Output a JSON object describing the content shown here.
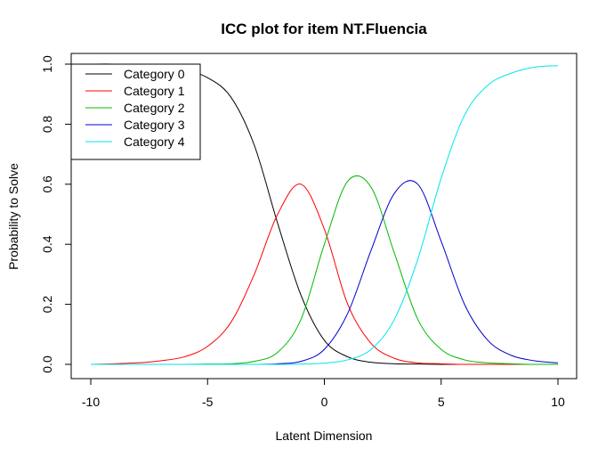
{
  "chart_data": {
    "type": "line",
    "title": "ICC plot for item NT.Fluencia",
    "xlabel": "Latent Dimension",
    "ylabel": "Probability to Solve",
    "xlim": [
      -10,
      10
    ],
    "ylim": [
      0,
      1
    ],
    "x_ticks": [
      "-10",
      "-5",
      "0",
      "5",
      "10"
    ],
    "y_ticks": [
      "0.0",
      "0.2",
      "0.4",
      "0.6",
      "0.8",
      "1.0"
    ],
    "grid": false,
    "legend_position": "top-left",
    "x": [
      -10,
      -9,
      -8,
      -7,
      -6,
      -5,
      -4,
      -3,
      -2,
      -1,
      0,
      1,
      2,
      3,
      4,
      5,
      6,
      7,
      8,
      9,
      10
    ],
    "series": [
      {
        "name": "Category 0",
        "color": "#000000",
        "values": [
          1.0,
          1.0,
          0.995,
          0.99,
          0.98,
          0.955,
          0.89,
          0.73,
          0.47,
          0.23,
          0.08,
          0.025,
          0.007,
          0.002,
          0.001,
          0.0,
          0.0,
          0.0,
          0.0,
          0.0,
          0.0
        ]
      },
      {
        "name": "Category 1",
        "color": "#ff0000",
        "values": [
          0.0,
          0.002,
          0.005,
          0.012,
          0.025,
          0.06,
          0.14,
          0.3,
          0.5,
          0.6,
          0.45,
          0.2,
          0.07,
          0.02,
          0.005,
          0.002,
          0.0,
          0.0,
          0.0,
          0.0,
          0.0
        ]
      },
      {
        "name": "Category 2",
        "color": "#00bb00",
        "values": [
          0.0,
          0.0,
          0.0,
          0.0,
          0.0,
          0.001,
          0.002,
          0.01,
          0.04,
          0.15,
          0.4,
          0.61,
          0.59,
          0.37,
          0.15,
          0.05,
          0.015,
          0.005,
          0.002,
          0.0,
          0.0
        ]
      },
      {
        "name": "Category 3",
        "color": "#0000cc",
        "values": [
          0.0,
          0.0,
          0.0,
          0.0,
          0.0,
          0.0,
          0.0,
          0.0,
          0.002,
          0.01,
          0.05,
          0.17,
          0.38,
          0.57,
          0.6,
          0.41,
          0.2,
          0.08,
          0.03,
          0.012,
          0.005
        ]
      },
      {
        "name": "Category 4",
        "color": "#00e5ee",
        "values": [
          0.0,
          0.0,
          0.0,
          0.0,
          0.0,
          0.0,
          0.0,
          0.0,
          0.0,
          0.001,
          0.004,
          0.015,
          0.05,
          0.15,
          0.35,
          0.62,
          0.83,
          0.93,
          0.97,
          0.99,
          0.995
        ]
      }
    ]
  }
}
